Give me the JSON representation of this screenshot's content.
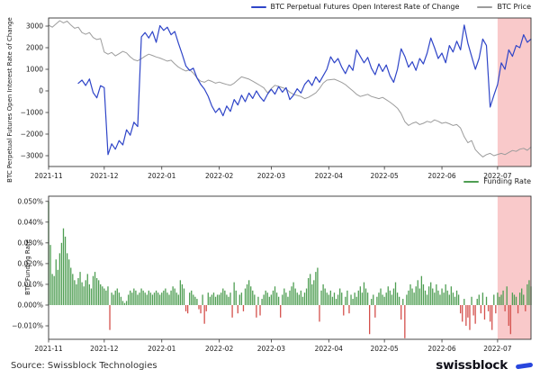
{
  "colors": {
    "oi_line": "#2f45c8",
    "price_line": "#9c9c9c",
    "funding_positive": "#4f9e53",
    "funding_negative": "#d4504c",
    "highlight": "#f9c9ca",
    "spine": "#333333",
    "brand_dash": "#2846dd"
  },
  "chart_data": [
    {
      "type": "line",
      "title": "",
      "ylabel": "BTC Perpetual Futures Open Interest Rate of Change",
      "legend_position": "top-right",
      "grid": false,
      "x_axis": {
        "start_date": "2021-11-01",
        "day_range": [
          0,
          260
        ],
        "tick_days": [
          0,
          30,
          61,
          92,
          120,
          151,
          181,
          212,
          242
        ],
        "tick_labels": [
          "2021-11",
          "2021-12",
          "2022-01",
          "2022-02",
          "2022-03",
          "2022-04",
          "2022-05",
          "2022-06",
          "2022-07"
        ]
      },
      "y_axis": {
        "range": [
          -3500,
          3375
        ],
        "tick_values": [
          3000,
          2000,
          1000,
          0,
          -1000,
          -2000,
          -3000
        ],
        "tick_labels": [
          "3000",
          "2000",
          "1000",
          "0",
          "−1000",
          "−2000",
          "−3000"
        ]
      },
      "highlight_region": {
        "start_day": 242,
        "end_day": 260
      },
      "series": [
        {
          "name": "BTC Perpetual Futures Open Interest Rate of Change",
          "color": "#2f45c8",
          "start_day": 16,
          "step_days": 2,
          "values": [
            350,
            500,
            250,
            550,
            -80,
            -320,
            240,
            150,
            -2950,
            -2450,
            -2700,
            -2300,
            -2500,
            -1800,
            -2050,
            -1450,
            -1650,
            2500,
            2700,
            2450,
            2750,
            2250,
            3020,
            2800,
            2950,
            2600,
            2750,
            2200,
            1700,
            1150,
            950,
            1050,
            600,
            300,
            80,
            -250,
            -700,
            -1000,
            -800,
            -1150,
            -700,
            -950,
            -400,
            -650,
            -200,
            -500,
            -100,
            -350,
            0,
            -280,
            -480,
            -150,
            80,
            -150,
            200,
            -60,
            150,
            -400,
            -200,
            100,
            -100,
            300,
            500,
            250,
            650,
            400,
            700,
            1000,
            1580,
            1300,
            1500,
            1100,
            800,
            1200,
            950,
            1900,
            1600,
            1300,
            1550,
            1050,
            750,
            1250,
            900,
            1200,
            700,
            400,
            1000,
            1950,
            1600,
            1100,
            1350,
            950,
            1500,
            1250,
            1750,
            2450,
            2000,
            1500,
            1750,
            1300,
            2100,
            1800,
            2300,
            1900,
            3050,
            2200,
            1600,
            1000,
            1500,
            2400,
            2100,
            -750,
            -200,
            300,
            1300,
            1000,
            1900,
            1600,
            2100,
            2000,
            2600,
            2250,
            2400
          ]
        },
        {
          "name": "BTC Price",
          "color": "#9c9c9c",
          "start_day": 0,
          "step_days": 2,
          "values": [
            3040,
            2950,
            3100,
            3250,
            3150,
            3230,
            3050,
            2900,
            2950,
            2700,
            2620,
            2700,
            2470,
            2380,
            2420,
            1800,
            1700,
            1780,
            1620,
            1720,
            1830,
            1760,
            1580,
            1440,
            1390,
            1490,
            1610,
            1700,
            1640,
            1570,
            1520,
            1450,
            1380,
            1420,
            1250,
            1100,
            1000,
            920,
            980,
            820,
            600,
            450,
            400,
            500,
            440,
            360,
            410,
            350,
            300,
            260,
            360,
            510,
            650,
            600,
            545,
            450,
            350,
            250,
            140,
            -90,
            110,
            260,
            210,
            150,
            90,
            -60,
            -160,
            -210,
            -260,
            -360,
            -300,
            -200,
            -90,
            110,
            360,
            500,
            520,
            540,
            470,
            390,
            290,
            140,
            0,
            -160,
            -260,
            -210,
            -160,
            -260,
            -310,
            -360,
            -300,
            -410,
            -520,
            -650,
            -800,
            -1050,
            -1420,
            -1600,
            -1500,
            -1440,
            -1560,
            -1500,
            -1410,
            -1460,
            -1340,
            -1410,
            -1500,
            -1460,
            -1520,
            -1600,
            -1560,
            -1720,
            -2120,
            -2400,
            -2300,
            -2720,
            -2900,
            -3060,
            -2950,
            -2890,
            -3000,
            -2940,
            -2890,
            -2950,
            -2850,
            -2760,
            -2800,
            -2700,
            -2660,
            -2750,
            -2600
          ]
        }
      ]
    },
    {
      "type": "bar",
      "title": "",
      "ylabel": "BTC Funding Rate",
      "legend_position": "top-right",
      "grid": false,
      "x_axis": {
        "start_date": "2021-11-01",
        "day_range": [
          0,
          260
        ],
        "tick_days": [
          0,
          30,
          61,
          92,
          120,
          151,
          181,
          212,
          242
        ],
        "tick_labels": [
          "2021-11",
          "2021-12",
          "2022-01",
          "2022-02",
          "2022-03",
          "2022-04",
          "2022-05",
          "2022-06",
          "2022-07"
        ]
      },
      "y_axis": {
        "unit": "percent",
        "range_milli_pct": [
          -16.5,
          52.5
        ],
        "tick_values_milli_pct": [
          50,
          40,
          30,
          20,
          10,
          0,
          -10
        ],
        "tick_labels": [
          "0.050%",
          "0.040%",
          "0.030%",
          "0.020%",
          "0.010%",
          "0.000%",
          "−0.010%"
        ]
      },
      "highlight_region": {
        "start_day": 242,
        "end_day": 260
      },
      "series": [
        {
          "name": "Funding Rate",
          "positive_color": "#4f9e53",
          "negative_color": "#d4504c",
          "start_day": 0,
          "step_days": 1,
          "value_unit": "0.001%",
          "values_milli_pct": [
            50,
            29,
            15,
            14,
            22,
            17,
            25,
            30,
            37,
            33,
            25,
            22,
            18,
            15,
            12,
            10,
            13,
            16,
            11,
            9,
            12,
            15,
            10,
            8,
            14,
            16,
            13,
            12,
            10,
            9,
            8,
            7,
            9,
            -12,
            6,
            5,
            7,
            8,
            6,
            4,
            2,
            1,
            2,
            5,
            7,
            6,
            8,
            7,
            5,
            6,
            8,
            7,
            6,
            5,
            7,
            6,
            5,
            6,
            7,
            6,
            5,
            6,
            7,
            8,
            6,
            5,
            7,
            9,
            8,
            6,
            5,
            12,
            10,
            8,
            -3,
            -4,
            6,
            7,
            5,
            4,
            3,
            -2,
            -4,
            5,
            -9,
            -3,
            6,
            4,
            5,
            6,
            4,
            5,
            5,
            6,
            8,
            7,
            5,
            4,
            6,
            -6,
            11,
            7,
            -4,
            5,
            6,
            -3,
            8,
            10,
            12,
            9,
            7,
            5,
            -6,
            4,
            -5,
            3,
            5,
            7,
            6,
            4,
            5,
            7,
            9,
            6,
            4,
            -6,
            5,
            8,
            6,
            4,
            7,
            9,
            11,
            8,
            6,
            5,
            7,
            4,
            6,
            8,
            13,
            15,
            10,
            12,
            16,
            18,
            -8,
            7,
            10,
            8,
            6,
            5,
            7,
            4,
            6,
            3,
            5,
            8,
            6,
            -5,
            4,
            7,
            -4,
            5,
            3,
            6,
            4,
            7,
            9,
            6,
            11,
            8,
            6,
            -14,
            3,
            5,
            -6,
            4,
            6,
            8,
            5,
            4,
            6,
            9,
            7,
            5,
            8,
            11,
            6,
            4,
            -7,
            3,
            -16,
            5,
            7,
            10,
            8,
            6,
            9,
            12,
            8,
            14,
            10,
            7,
            5,
            9,
            11,
            8,
            6,
            10,
            7,
            5,
            8,
            6,
            10,
            7,
            5,
            9,
            6,
            4,
            7,
            5,
            -4,
            -8,
            3,
            -10,
            -6,
            -12,
            4,
            -5,
            -9,
            3,
            5,
            -4,
            6,
            -7,
            4,
            -3,
            -8,
            -12,
            5,
            -4,
            6,
            4,
            5,
            7,
            -3,
            9,
            -10,
            -14,
            6,
            5,
            4,
            -4,
            6,
            8,
            5,
            -3,
            10,
            12,
            9
          ]
        }
      ]
    }
  ],
  "footer": {
    "source": "Source: Swissblock Technologies",
    "brand": "swissblock"
  }
}
